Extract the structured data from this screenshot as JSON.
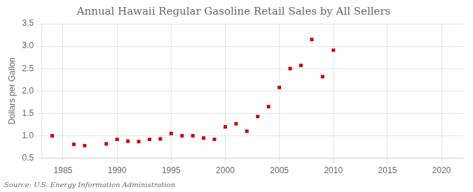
{
  "chart_data": {
    "type": "scatter",
    "title": "Annual Hawaii Regular Gasoline Retail Sales by All Sellers",
    "ylabel": "Dollars per Gallon",
    "source": "Source: U.S. Energy Information Administration",
    "x": [
      1984,
      1986,
      1987,
      1989,
      1990,
      1991,
      1992,
      1993,
      1994,
      1995,
      1996,
      1997,
      1998,
      1999,
      2000,
      2001,
      2002,
      2003,
      2004,
      2005,
      2006,
      2007,
      2008,
      2009,
      2010
    ],
    "values": [
      1.0,
      0.81,
      0.78,
      0.82,
      0.92,
      0.88,
      0.87,
      0.92,
      0.93,
      1.05,
      1.0,
      1.0,
      0.95,
      0.92,
      1.2,
      1.27,
      1.1,
      1.43,
      1.65,
      2.08,
      2.5,
      2.57,
      3.15,
      2.32,
      2.91
    ],
    "color": "#cc0000",
    "marker": "square",
    "xlim": [
      1983,
      2022
    ],
    "xticks": [
      1985,
      1990,
      1995,
      2000,
      2005,
      2010,
      2015,
      2020
    ],
    "ylim": [
      0.5,
      3.5
    ],
    "yticks": [
      0.5,
      {
        "value": 1.0,
        "label": "1.0"
      },
      1.5,
      {
        "value": 2.0,
        "label": "2.0"
      },
      2.5,
      {
        "value": 3.0,
        "label": "3.0"
      },
      3.5
    ],
    "grid": true
  }
}
